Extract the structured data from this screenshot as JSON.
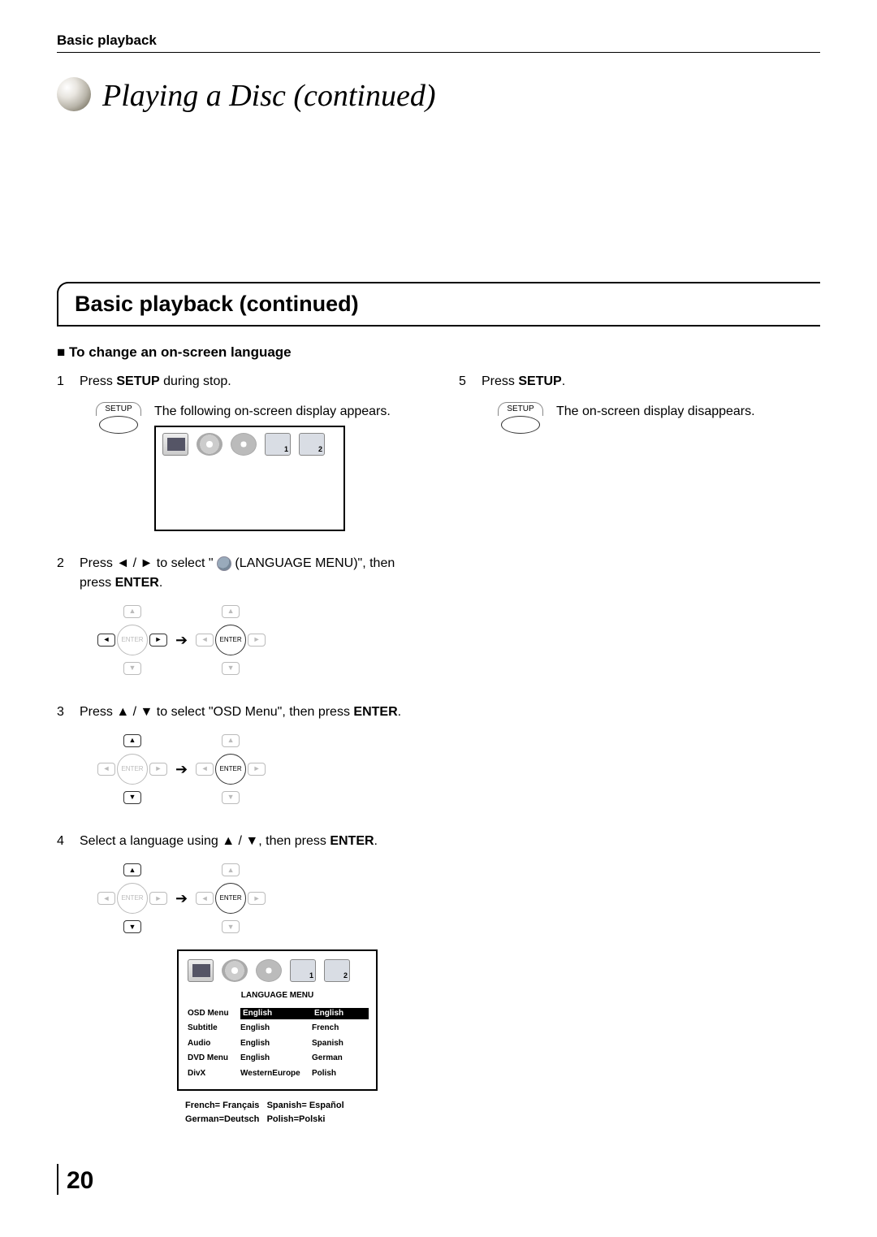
{
  "header": {
    "section": "Basic playback"
  },
  "title": "Playing a Disc (continued)",
  "section_heading": "Basic playback (continued)",
  "subheading": "To change an on-screen language",
  "left_steps": {
    "s1": {
      "num": "1",
      "text_a": "Press ",
      "bold": "SETUP",
      "text_b": " during stop."
    },
    "s1_caption": "The following on-screen display appears.",
    "s2": {
      "num": "2",
      "text_a": "Press ",
      "arrows": "◄ / ►",
      "text_b": " to select \" ",
      "text_c": " (LANGUAGE MENU)\", then press ",
      "bold": "ENTER",
      "text_d": "."
    },
    "s3": {
      "num": "3",
      "text_a": "Press ",
      "arrows": "▲ / ▼",
      "text_b": " to select \"OSD Menu\", then press ",
      "bold": "ENTER",
      "text_d": "."
    },
    "s4": {
      "num": "4",
      "text_a": "Select a language using ",
      "arrows": "▲ / ▼",
      "text_b": ", then press ",
      "bold": "ENTER",
      "text_d": "."
    }
  },
  "right_steps": {
    "s5": {
      "num": "5",
      "text_a": "Press ",
      "bold": "SETUP",
      "text_b": "."
    },
    "s5_caption": "The on-screen display disappears."
  },
  "setup_button_label": "SETUP",
  "enter_label": "ENTER",
  "osd_menu": {
    "title": "LANGUAGE MENU",
    "rows": [
      {
        "label": "OSD Menu",
        "col1": "English",
        "col2": "English",
        "hl1": true,
        "hl2": true
      },
      {
        "label": "Subtitle",
        "col1": "English",
        "col2": "French"
      },
      {
        "label": "Audio",
        "col1": "English",
        "col2": "Spanish"
      },
      {
        "label": "DVD Menu",
        "col1": "English",
        "col2": "German"
      },
      {
        "label": "DivX",
        "col1": "WesternEurope",
        "col2": "Polish"
      }
    ]
  },
  "footnote": {
    "line1_a": "French= Français",
    "line1_b": "Spanish= Español",
    "line2_a": "German=Deutsch",
    "line2_b": "Polish=Polski"
  },
  "arrows": {
    "up": "▲",
    "down": "▼",
    "left": "◄",
    "right": "►",
    "long_right": "➔"
  },
  "page_number": "20",
  "colors": {
    "text": "#000000",
    "bg": "#ffffff",
    "dim": "#bbbbbb"
  }
}
